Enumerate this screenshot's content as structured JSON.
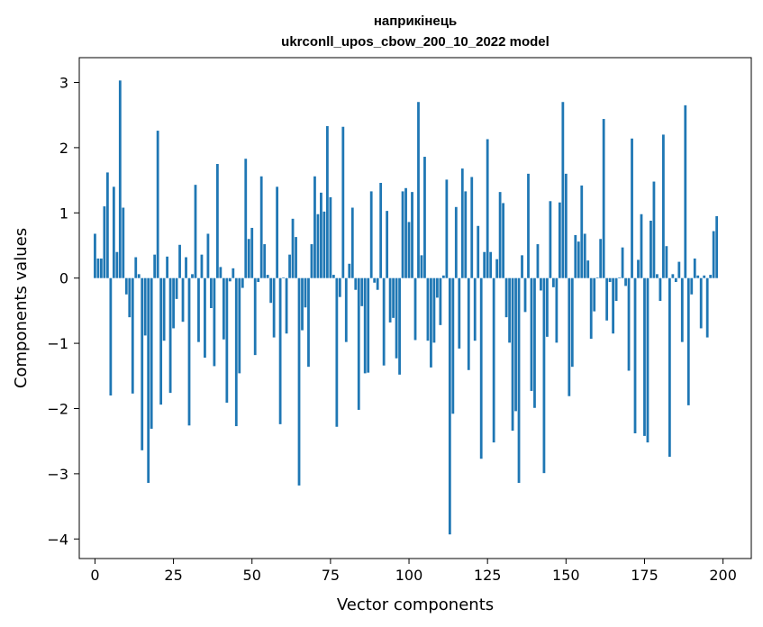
{
  "chart_data": {
    "type": "bar",
    "title_line1": "наприкінець",
    "title_line2": "ukrconll_upos_cbow_200_10_2022 model",
    "xlabel": "Vector components",
    "ylabel": "Components values",
    "xlim": [
      -5,
      209
    ],
    "ylim": [
      -4.3,
      3.38
    ],
    "xticks": [
      0,
      25,
      50,
      75,
      100,
      125,
      150,
      175,
      200
    ],
    "yticks": [
      -4,
      -3,
      -2,
      -1,
      0,
      1,
      2,
      3
    ],
    "ytick_labels": [
      "−4",
      "−3",
      "−2",
      "−1",
      "0",
      "1",
      "2",
      "3"
    ],
    "grid": false,
    "bar_color": "#1f77b4",
    "values": [
      0.68,
      0.3,
      0.3,
      1.1,
      1.62,
      -1.8,
      1.4,
      0.4,
      3.03,
      1.08,
      -0.25,
      -0.6,
      -1.77,
      0.32,
      0.06,
      -2.64,
      -0.88,
      -3.14,
      -2.31,
      0.36,
      2.26,
      -1.94,
      -0.96,
      0.33,
      -1.76,
      -0.77,
      -0.32,
      0.51,
      -0.67,
      0.32,
      -2.26,
      0.06,
      1.43,
      -0.98,
      0.36,
      -1.22,
      0.68,
      -0.46,
      -1.35,
      1.75,
      0.17,
      -0.94,
      -1.91,
      -0.05,
      0.15,
      -2.27,
      -1.46,
      -0.15,
      1.83,
      0.6,
      0.77,
      -1.18,
      -0.06,
      1.56,
      0.52,
      0.05,
      -0.38,
      -0.91,
      1.4,
      -2.24,
      0.01,
      -0.85,
      0.36,
      0.91,
      0.63,
      -3.18,
      -0.8,
      -0.45,
      -1.36,
      0.52,
      1.56,
      0.98,
      1.31,
      1.02,
      2.33,
      1.24,
      0.05,
      -2.28,
      -0.29,
      2.32,
      -0.98,
      0.22,
      1.08,
      -0.18,
      -2.02,
      -0.43,
      -1.46,
      -1.45,
      1.33,
      -0.07,
      -0.18,
      1.46,
      -1.34,
      1.03,
      -0.68,
      -0.61,
      -1.23,
      -1.48,
      1.33,
      1.38,
      0.86,
      1.32,
      -0.95,
      2.7,
      0.35,
      1.86,
      -0.96,
      -1.37,
      -0.99,
      -0.3,
      -0.72,
      0.04,
      1.51,
      -3.93,
      -2.08,
      1.09,
      -1.08,
      1.68,
      1.33,
      -1.41,
      1.55,
      -0.96,
      0.8,
      -2.77,
      0.4,
      2.13,
      0.4,
      -2.52,
      0.29,
      1.32,
      1.15,
      -0.6,
      -0.99,
      -2.34,
      -2.04,
      -3.14,
      0.35,
      -0.52,
      1.6,
      -1.73,
      -1.99,
      0.52,
      -0.19,
      -2.99,
      -0.9,
      1.18,
      -0.14,
      -0.99,
      1.16,
      2.7,
      1.6,
      -1.81,
      -1.36,
      0.66,
      0.56,
      1.42,
      0.68,
      0.27,
      -0.93,
      -0.51,
      0.01,
      0.6,
      2.44,
      -0.65,
      -0.06,
      -0.85,
      -0.35,
      0.01,
      0.47,
      -0.12,
      -1.42,
      2.14,
      -2.38,
      0.28,
      0.98,
      -2.42,
      -2.52,
      0.88,
      1.48,
      0.06,
      -0.35,
      2.2,
      0.49,
      -2.74,
      0.06,
      -0.06,
      0.25,
      -0.98,
      2.65,
      -1.95,
      -0.25,
      0.3,
      0.04,
      -0.77,
      0.04,
      -0.91,
      0.05,
      0.72,
      0.95,
      0.0
    ]
  }
}
